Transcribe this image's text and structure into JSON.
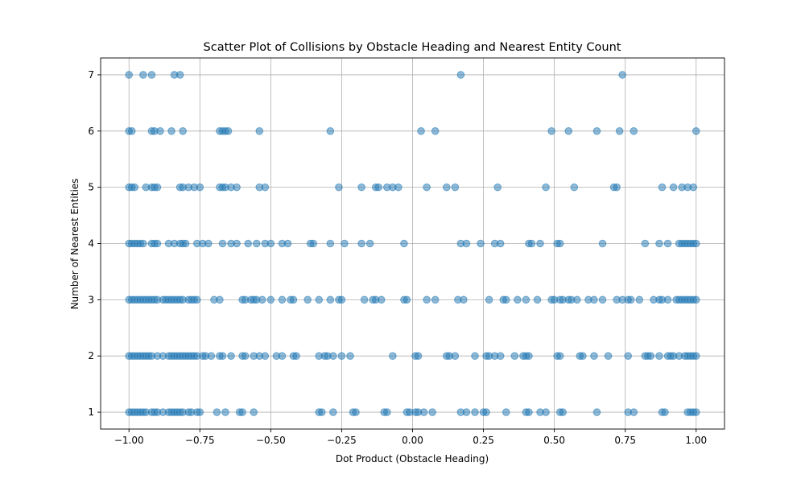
{
  "chart_data": {
    "type": "scatter",
    "title": "Scatter Plot of Collisions by Obstacle Heading and Nearest Entity Count",
    "xlabel": "Dot Product (Obstacle Heading)",
    "ylabel": "Number of Nearest Entities",
    "xlim": [
      -1.1,
      1.1
    ],
    "ylim": [
      0.7,
      7.3
    ],
    "xticks": [
      -1.0,
      -0.75,
      -0.5,
      -0.25,
      0.0,
      0.25,
      0.5,
      0.75,
      1.0
    ],
    "xtick_labels": [
      "−1.00",
      "−0.75",
      "−0.50",
      "−0.25",
      "0.00",
      "0.25",
      "0.50",
      "0.75",
      "1.00"
    ],
    "yticks": [
      1,
      2,
      3,
      4,
      5,
      6,
      7
    ],
    "ytick_labels": [
      "1",
      "2",
      "3",
      "4",
      "5",
      "6",
      "7"
    ],
    "grid": true,
    "color": "#1f77b4",
    "points_by_y": {
      "7": [
        -1.0,
        -0.95,
        -0.92,
        -0.84,
        -0.82,
        0.17,
        0.74
      ],
      "6": [
        -1.0,
        -0.99,
        -0.92,
        -0.91,
        -0.89,
        -0.85,
        -0.81,
        -0.68,
        -0.67,
        -0.66,
        -0.65,
        -0.54,
        -0.29,
        0.03,
        0.08,
        0.49,
        0.55,
        0.65,
        0.73,
        0.78,
        1.0
      ],
      "5": [
        -1.0,
        -0.99,
        -0.98,
        -0.94,
        -0.92,
        -0.91,
        -0.9,
        -0.82,
        -0.81,
        -0.79,
        -0.77,
        -0.75,
        -0.68,
        -0.67,
        -0.66,
        -0.64,
        -0.62,
        -0.54,
        -0.52,
        -0.26,
        -0.18,
        -0.13,
        -0.12,
        -0.09,
        -0.07,
        -0.05,
        0.05,
        0.12,
        0.15,
        0.3,
        0.47,
        0.57,
        0.71,
        0.72,
        0.88,
        0.92,
        0.95,
        0.97,
        0.99
      ],
      "4": [
        -1.0,
        -0.99,
        -0.98,
        -0.97,
        -0.96,
        -0.95,
        -0.92,
        -0.91,
        -0.9,
        -0.86,
        -0.84,
        -0.82,
        -0.81,
        -0.8,
        -0.76,
        -0.74,
        -0.72,
        -0.67,
        -0.64,
        -0.62,
        -0.58,
        -0.55,
        -0.52,
        -0.5,
        -0.46,
        -0.44,
        -0.36,
        -0.35,
        -0.29,
        -0.24,
        -0.18,
        -0.15,
        -0.03,
        0.17,
        0.19,
        0.24,
        0.29,
        0.31,
        0.41,
        0.42,
        0.45,
        0.51,
        0.52,
        0.67,
        0.82,
        0.87,
        0.9,
        0.94,
        0.95,
        0.96,
        0.97,
        0.98,
        0.99,
        1.0
      ],
      "3": [
        -1.0,
        -0.99,
        -0.98,
        -0.97,
        -0.96,
        -0.95,
        -0.94,
        -0.93,
        -0.92,
        -0.91,
        -0.9,
        -0.88,
        -0.87,
        -0.86,
        -0.85,
        -0.84,
        -0.83,
        -0.82,
        -0.81,
        -0.79,
        -0.78,
        -0.77,
        -0.76,
        -0.7,
        -0.68,
        -0.6,
        -0.59,
        -0.57,
        -0.56,
        -0.55,
        -0.53,
        -0.5,
        -0.46,
        -0.43,
        -0.42,
        -0.37,
        -0.33,
        -0.29,
        -0.26,
        -0.25,
        -0.17,
        -0.14,
        -0.13,
        -0.11,
        -0.03,
        -0.02,
        0.05,
        0.08,
        0.16,
        0.18,
        0.27,
        0.32,
        0.33,
        0.37,
        0.4,
        0.44,
        0.49,
        0.5,
        0.52,
        0.53,
        0.55,
        0.56,
        0.58,
        0.62,
        0.64,
        0.67,
        0.72,
        0.74,
        0.76,
        0.77,
        0.8,
        0.85,
        0.87,
        0.88,
        0.9,
        0.93,
        0.94,
        0.95,
        0.96,
        0.97,
        0.98,
        0.99,
        1.0
      ],
      "2": [
        -1.0,
        -0.99,
        -0.98,
        -0.97,
        -0.96,
        -0.95,
        -0.94,
        -0.93,
        -0.92,
        -0.9,
        -0.88,
        -0.86,
        -0.85,
        -0.84,
        -0.83,
        -0.82,
        -0.81,
        -0.8,
        -0.79,
        -0.78,
        -0.77,
        -0.76,
        -0.74,
        -0.73,
        -0.71,
        -0.68,
        -0.67,
        -0.64,
        -0.6,
        -0.59,
        -0.56,
        -0.54,
        -0.52,
        -0.48,
        -0.46,
        -0.42,
        -0.41,
        -0.33,
        -0.31,
        -0.3,
        -0.28,
        -0.25,
        -0.22,
        -0.07,
        0.01,
        0.02,
        0.12,
        0.13,
        0.15,
        0.22,
        0.26,
        0.27,
        0.29,
        0.31,
        0.36,
        0.39,
        0.4,
        0.41,
        0.51,
        0.52,
        0.59,
        0.6,
        0.64,
        0.69,
        0.76,
        0.82,
        0.83,
        0.84,
        0.87,
        0.9,
        0.91,
        0.92,
        0.94,
        0.96,
        0.97,
        0.98,
        0.99,
        1.0
      ],
      "1": [
        -1.0,
        -0.99,
        -0.98,
        -0.97,
        -0.96,
        -0.95,
        -0.94,
        -0.92,
        -0.91,
        -0.9,
        -0.88,
        -0.86,
        -0.85,
        -0.84,
        -0.83,
        -0.82,
        -0.81,
        -0.79,
        -0.78,
        -0.76,
        -0.75,
        -0.69,
        -0.66,
        -0.61,
        -0.6,
        -0.56,
        -0.33,
        -0.32,
        -0.28,
        -0.21,
        -0.2,
        -0.1,
        -0.09,
        -0.02,
        -0.01,
        0.01,
        0.02,
        0.04,
        0.07,
        0.17,
        0.19,
        0.22,
        0.25,
        0.26,
        0.33,
        0.4,
        0.41,
        0.45,
        0.47,
        0.52,
        0.53,
        0.65,
        0.76,
        0.78,
        0.88,
        0.89,
        0.97,
        0.98,
        0.99,
        1.0
      ]
    }
  }
}
